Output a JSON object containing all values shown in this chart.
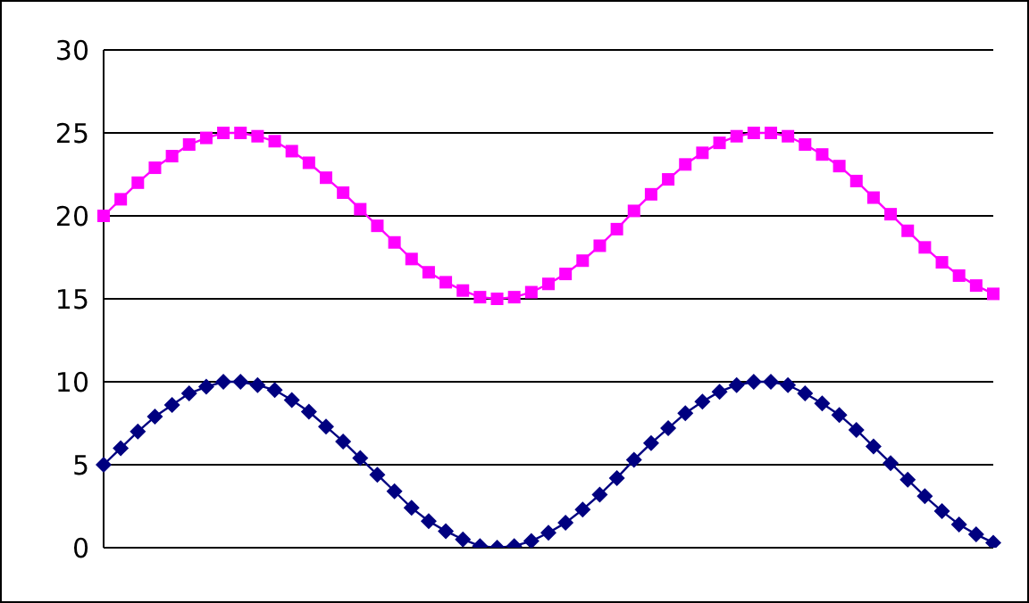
{
  "chart_data": {
    "type": "line",
    "categories": [
      null,
      null,
      null,
      null,
      null,
      null,
      null,
      null,
      null,
      null,
      null,
      null,
      null,
      null,
      null,
      null,
      null,
      null,
      null,
      null,
      null,
      null,
      null,
      null,
      null,
      null,
      null,
      null,
      null,
      null,
      null,
      null,
      null,
      null,
      null,
      null,
      null,
      null,
      null,
      null,
      null,
      null,
      null,
      null,
      null,
      null,
      null,
      null,
      null,
      null,
      null,
      null,
      null
    ],
    "series": [
      {
        "color": "#ff00ff",
        "marker": "square",
        "values": [
          20.0,
          21.0,
          22.0,
          22.9,
          23.6,
          24.3,
          24.7,
          25.0,
          25.0,
          24.8,
          24.5,
          23.9,
          23.2,
          22.3,
          21.4,
          20.4,
          19.4,
          18.4,
          17.4,
          16.6,
          16.0,
          15.5,
          15.1,
          15.0,
          15.1,
          15.4,
          15.9,
          16.5,
          17.3,
          18.2,
          19.2,
          20.3,
          21.3,
          22.2,
          23.1,
          23.8,
          24.4,
          24.8,
          25.0,
          25.0,
          24.8,
          24.3,
          23.7,
          23.0,
          22.1,
          21.1,
          20.1,
          19.1,
          18.1,
          17.2,
          16.4,
          15.8,
          15.3
        ]
      },
      {
        "color": "#000080",
        "marker": "diamond",
        "values": [
          5.0,
          6.0,
          7.0,
          7.9,
          8.6,
          9.3,
          9.7,
          10.0,
          10.0,
          9.8,
          9.5,
          8.9,
          8.2,
          7.3,
          6.4,
          5.4,
          4.4,
          3.4,
          2.4,
          1.6,
          1.0,
          0.5,
          0.1,
          0.0,
          0.1,
          0.4,
          0.9,
          1.5,
          2.3,
          3.2,
          4.2,
          5.3,
          6.3,
          7.2,
          8.1,
          8.8,
          9.4,
          9.8,
          10.0,
          10.0,
          9.8,
          9.3,
          8.7,
          8.0,
          7.1,
          6.1,
          5.1,
          4.1,
          3.1,
          2.2,
          1.4,
          0.8,
          0.3
        ]
      }
    ],
    "ylim": [
      0,
      30
    ],
    "yticks": [
      0,
      5,
      10,
      15,
      20,
      25,
      30
    ],
    "grid": "y",
    "legend": false,
    "tick_labels": "y"
  }
}
